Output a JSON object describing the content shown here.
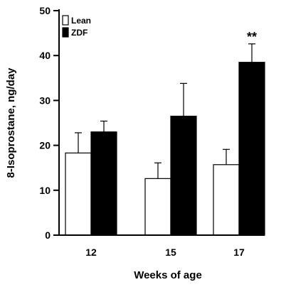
{
  "chart_data": {
    "type": "bar",
    "title": "",
    "xlabel": "Weeks of age",
    "ylabel": "8-Isoprostane, ng/day",
    "categories": [
      "12",
      "15",
      "17"
    ],
    "ylim": [
      0,
      50
    ],
    "yticks": [
      0,
      10,
      20,
      30,
      40,
      50
    ],
    "grid": false,
    "legend_position": "top-left",
    "error_bars": "upper only",
    "series": [
      {
        "name": "Lean",
        "values": [
          18.3,
          12.6,
          15.7
        ],
        "errors": [
          4.5,
          3.5,
          3.4
        ],
        "fill": "#ffffff"
      },
      {
        "name": "ZDF",
        "values": [
          23.0,
          26.5,
          38.5
        ],
        "errors": [
          2.4,
          7.3,
          4.1
        ],
        "fill": "#000000"
      }
    ],
    "annotations": [
      {
        "category": "17",
        "series": "ZDF",
        "text": "**"
      }
    ]
  }
}
